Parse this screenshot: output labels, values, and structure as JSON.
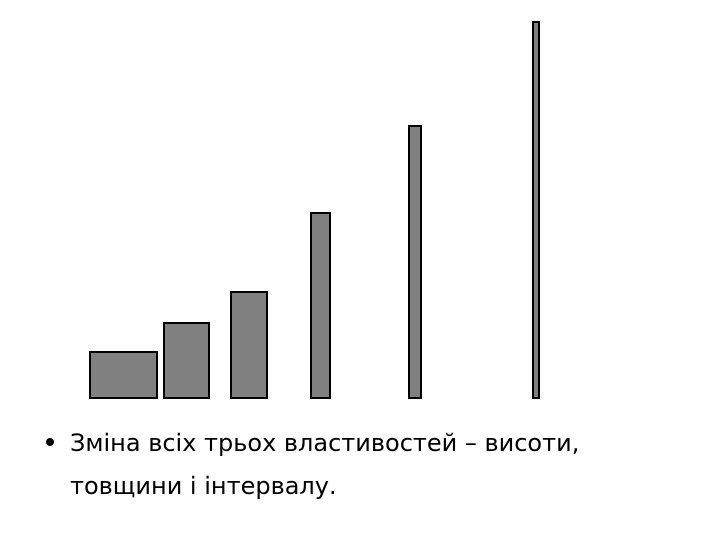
{
  "slide": {
    "bullet": {
      "lines": [
        "Зміна всіх трьох властивостей – висоти,",
        "товщини і інтервалу."
      ]
    }
  }
}
